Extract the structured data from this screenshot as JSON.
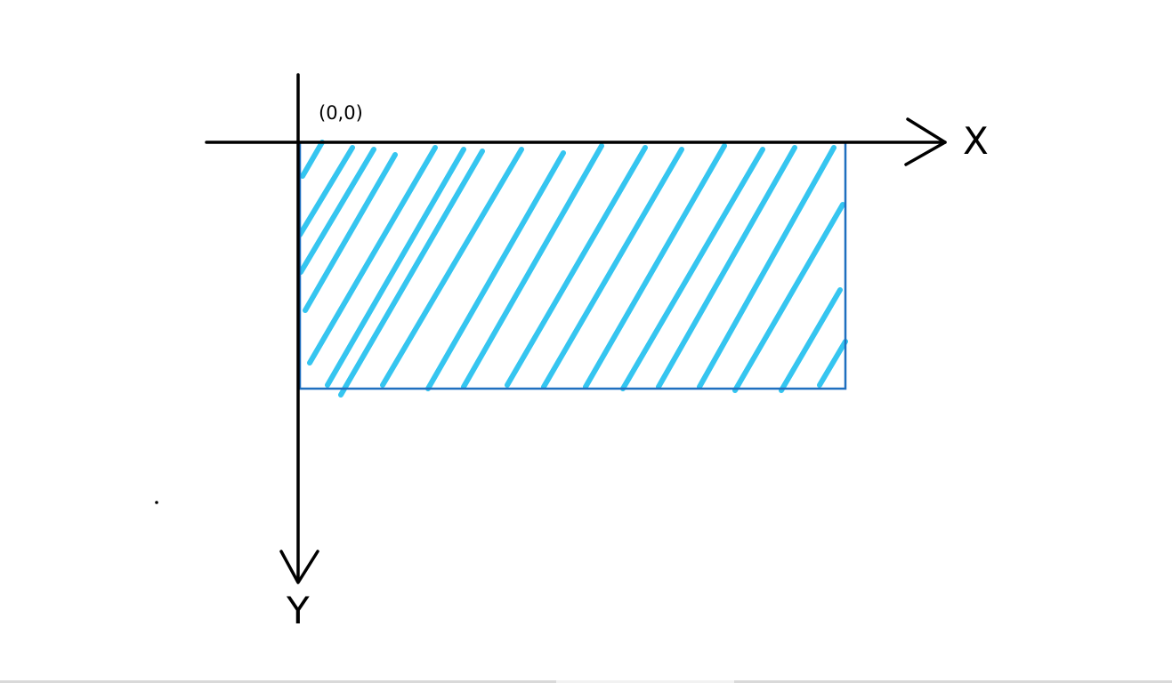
{
  "labels": {
    "origin": "(0,0)",
    "x_axis": "X",
    "y_axis": "Y"
  },
  "colors": {
    "axis": "#000000",
    "rect_outline": "#1f6fbf",
    "hatch": "#35c5f0",
    "background": "#ffffff"
  }
}
